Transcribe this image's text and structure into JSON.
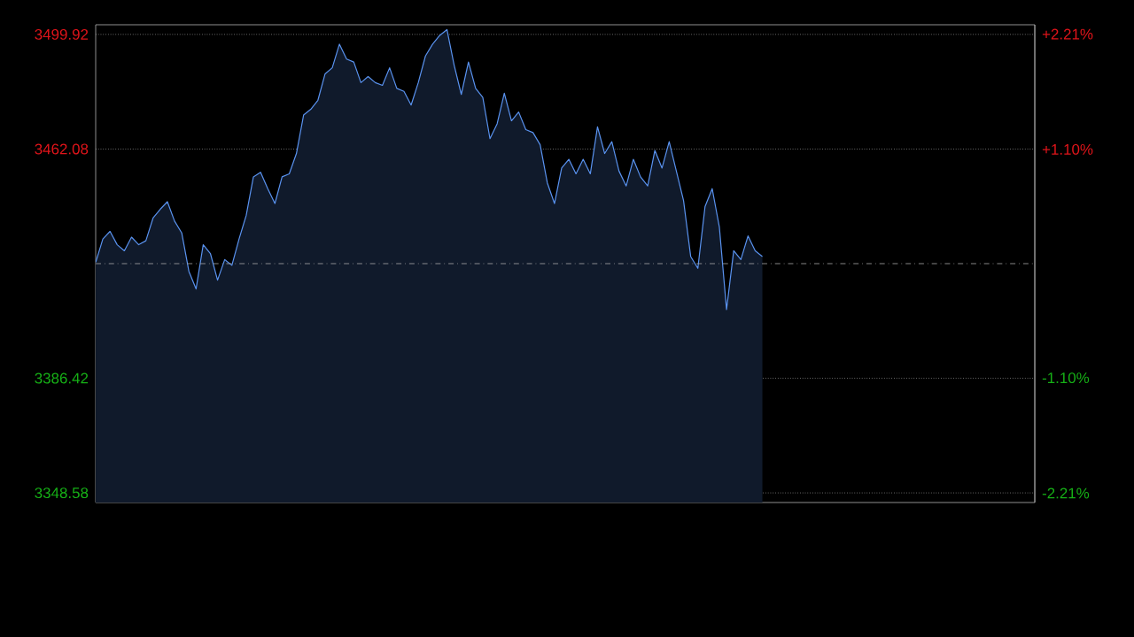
{
  "chart_data": {
    "type": "area",
    "categories": [
      null,
      null,
      null,
      null,
      null,
      null,
      null,
      null,
      null,
      null,
      null,
      null,
      null,
      null,
      null,
      null,
      null,
      null,
      null,
      null,
      null,
      null,
      null,
      null,
      null,
      null,
      null,
      null,
      null,
      null,
      null,
      null,
      null,
      null,
      null,
      null,
      null,
      null,
      null,
      null,
      null,
      null,
      null,
      null,
      null,
      null,
      null,
      null,
      null,
      null,
      null,
      null,
      null,
      null,
      null,
      null,
      null,
      null,
      null,
      null,
      null,
      null,
      null,
      null,
      null,
      null,
      null,
      null,
      null,
      null,
      null,
      null,
      null,
      null,
      null,
      null,
      null,
      null,
      null,
      null,
      null,
      null,
      null,
      null,
      null,
      null,
      null,
      null,
      null,
      null,
      null,
      null,
      null,
      null,
      null,
      null,
      null,
      null,
      null,
      null,
      null,
      null,
      null,
      null,
      null,
      null,
      null,
      null,
      null,
      null,
      null,
      null,
      null,
      null,
      null,
      null,
      null,
      null,
      null,
      null,
      null,
      null,
      null,
      null,
      null,
      null,
      null,
      null,
      null,
      null,
      null,
      null
    ],
    "series": [
      {
        "color": "#5a93f0",
        "values": [
          3424.7,
          3432.4,
          3434.9,
          3430.5,
          3428.5,
          3433.0,
          3430.5,
          3431.8,
          3439.3,
          3442.2,
          3444.7,
          3438.3,
          3434.4,
          3421.7,
          3415.9,
          3430.5,
          3427.6,
          3418.8,
          3425.6,
          3423.7,
          3432.4,
          3440.2,
          3452.9,
          3454.4,
          3449.0,
          3444.1,
          3452.9,
          3453.9,
          3460.6,
          3473.3,
          3475.2,
          3478.2,
          3486.9,
          3488.9,
          3496.7,
          3491.8,
          3490.8,
          3484.0,
          3486.0,
          3484.0,
          3483.1,
          3488.9,
          3482.1,
          3481.1,
          3476.6,
          3484.0,
          3492.8,
          3496.7,
          3499.6,
          3501.5,
          3489.8,
          3480.1,
          3490.8,
          3482.1,
          3479.1,
          3465.5,
          3470.4,
          3480.5,
          3471.4,
          3474.3,
          3468.5,
          3467.5,
          3463.5,
          3450.9,
          3444.1,
          3455.8,
          3458.7,
          3453.9,
          3458.7,
          3453.9,
          3469.4,
          3460.6,
          3464.5,
          3454.8,
          3449.9,
          3458.7,
          3452.9,
          3449.9,
          3461.6,
          3455.8,
          3464.5,
          3454.8,
          3445.1,
          3426.6,
          3422.7,
          3443.1,
          3449.0,
          3436.3,
          3409.1,
          3428.5,
          3425.6,
          3433.4,
          3428.5,
          3426.6,
          null,
          null,
          null,
          null,
          null,
          null,
          null,
          null,
          null,
          null,
          null,
          null,
          null,
          null,
          null,
          null,
          null,
          null,
          null,
          null,
          null,
          null,
          null,
          null,
          null,
          null,
          null,
          null,
          null,
          null,
          null,
          null,
          null,
          null,
          null,
          null,
          null,
          null
        ]
      }
    ],
    "ylim": [
      3345.4,
      3503.1
    ],
    "yticks": [
      3348.58,
      3386.42,
      3462.08,
      3499.92
    ],
    "y2lim": [
      -2.3,
      2.3
    ],
    "y2ticks": [
      {
        "value": -2.21,
        "label": "-2.21%"
      },
      {
        "value": -1.1,
        "label": "-1.10%"
      },
      {
        "value": 1.1,
        "label": "+1.10%"
      },
      {
        "value": 2.21,
        "label": "+2.21%"
      }
    ],
    "ref_lines": [
      {
        "axis": "y",
        "value": 3424.25,
        "color": "#aaaaaa",
        "line_style": "dashed"
      }
    ],
    "grid": "y",
    "tick_labels": "y"
  }
}
